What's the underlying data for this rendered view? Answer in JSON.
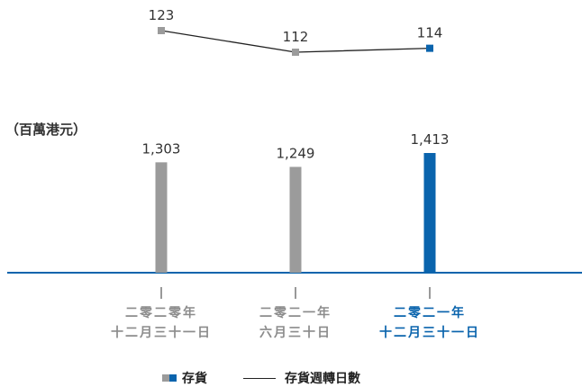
{
  "chart_data": {
    "type": "bar+line",
    "unit_label": "（百萬港元）",
    "categories": [
      {
        "line1": "二零二零年",
        "line2": "十二月三十一日",
        "highlight": false
      },
      {
        "line1": "二零二一年",
        "line2": "六月三十日",
        "highlight": false
      },
      {
        "line1": "二零二一年",
        "line2": "十二月三十一日",
        "highlight": true
      }
    ],
    "bar_series": {
      "name": "存貨",
      "values": [
        1303,
        1249,
        1413
      ],
      "labels": [
        "1,303",
        "1,249",
        "1,413"
      ]
    },
    "line_series": {
      "name": "存貨週轉日數",
      "values": [
        123,
        112,
        114
      ],
      "labels": [
        "123",
        "112",
        "114"
      ]
    },
    "colors": {
      "bar": "#9b9b9b",
      "highlight": "#0a64ad",
      "axis": "#0a64ad",
      "line": "#222222",
      "label": "#333333"
    }
  },
  "legend": {
    "bar_label": "存貨",
    "line_label": "存貨週轉日數"
  }
}
